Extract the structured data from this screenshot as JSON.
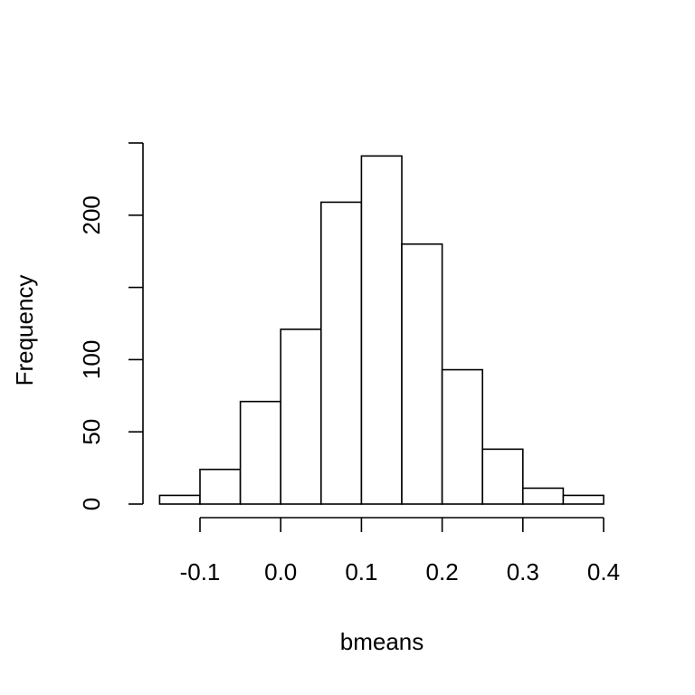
{
  "chart_data": {
    "type": "bar",
    "title": "",
    "xlabel": "bmeans",
    "ylabel": "Frequency",
    "bins": [
      {
        "start": -0.15,
        "end": -0.1,
        "count": 6
      },
      {
        "start": -0.1,
        "end": -0.05,
        "count": 24
      },
      {
        "start": -0.05,
        "end": 0.0,
        "count": 71
      },
      {
        "start": 0.0,
        "end": 0.05,
        "count": 121
      },
      {
        "start": 0.05,
        "end": 0.1,
        "count": 209
      },
      {
        "start": 0.1,
        "end": 0.15,
        "count": 241
      },
      {
        "start": 0.15,
        "end": 0.2,
        "count": 180
      },
      {
        "start": 0.2,
        "end": 0.25,
        "count": 93
      },
      {
        "start": 0.25,
        "end": 0.3,
        "count": 38
      },
      {
        "start": 0.3,
        "end": 0.35,
        "count": 11
      },
      {
        "start": 0.35,
        "end": 0.4,
        "count": 6
      }
    ],
    "x_ticks": [
      -0.1,
      0.0,
      0.1,
      0.2,
      0.3,
      0.4
    ],
    "x_tick_labels": [
      "-0.1",
      "0.0",
      "0.1",
      "0.2",
      "0.3",
      "0.4"
    ],
    "y_ticks": [
      0,
      50,
      100,
      150,
      200,
      250
    ],
    "y_tick_labels": [
      "0",
      "50",
      "100",
      "",
      "200",
      ""
    ],
    "xlim": [
      -0.15,
      0.4
    ],
    "ylim": [
      0,
      250
    ],
    "grid": false,
    "legend": "none"
  }
}
